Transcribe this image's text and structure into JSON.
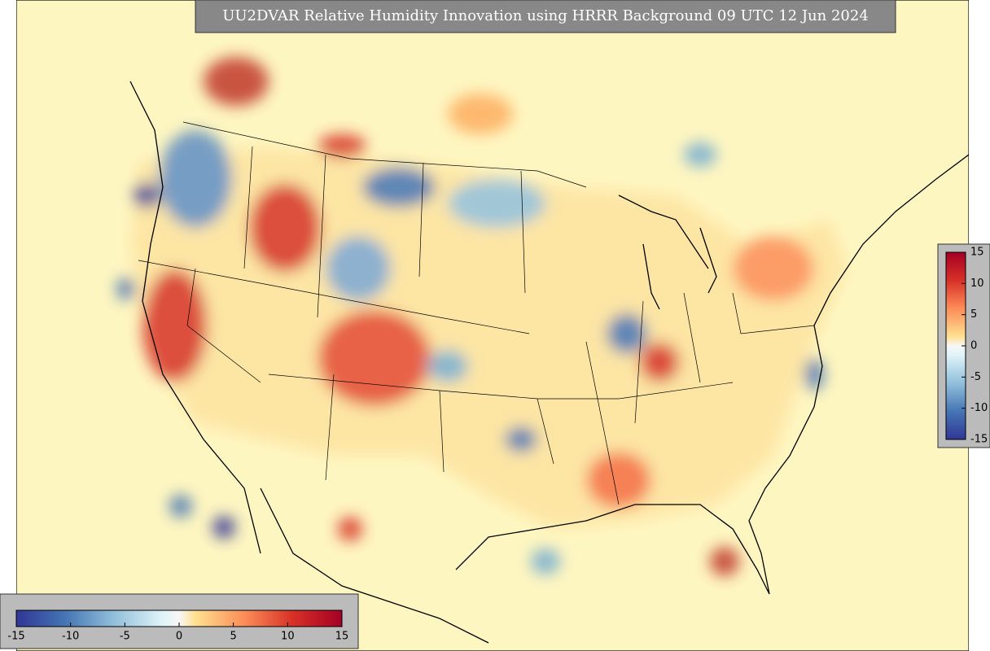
{
  "title": "UU2DVAR Relative Humidity Innovation using HRRR Background 09 UTC 12 Jun 2024",
  "colorbars": [
    {
      "orientation": "vertical",
      "ticks": [
        15,
        10,
        5,
        0,
        -5,
        -10,
        -15
      ]
    },
    {
      "orientation": "horizontal",
      "ticks": [
        -15,
        -10,
        -5,
        0,
        5,
        10,
        15
      ]
    }
  ]
}
